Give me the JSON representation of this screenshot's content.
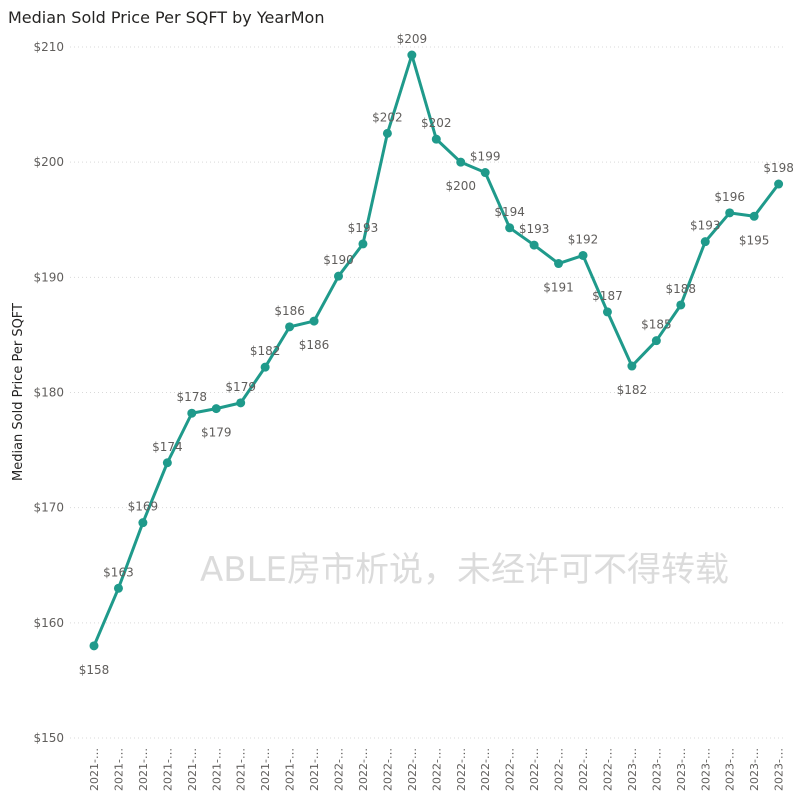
{
  "chart_data": {
    "type": "line",
    "title": "Median Sold Price Per SQFT by YearMon",
    "xlabel": "",
    "ylabel": "Median Sold Price Per SQFT",
    "ylim": [
      150,
      210
    ],
    "y_ticks": [
      "$150",
      "$160",
      "$170",
      "$180",
      "$190",
      "$200",
      "$210"
    ],
    "grid": true,
    "line_color": "#1F9A8B",
    "categories": [
      "2021-…",
      "2021-…",
      "2021-…",
      "2021-…",
      "2021-…",
      "2021-…",
      "2021-…",
      "2021-…",
      "2021-…",
      "2021-…",
      "2022-…",
      "2022-…",
      "2022-…",
      "2022-…",
      "2022-…",
      "2022-…",
      "2022-…",
      "2022-…",
      "2022-…",
      "2022-…",
      "2022-…",
      "2022-…",
      "2023-…",
      "2023-…",
      "2023-…",
      "2023-…",
      "2023-…",
      "2023-…",
      "2023-…"
    ],
    "values": [
      158.0,
      163.0,
      168.7,
      173.9,
      178.2,
      178.6,
      179.1,
      182.2,
      185.7,
      186.2,
      190.1,
      192.9,
      202.5,
      209.3,
      202.0,
      200.0,
      199.1,
      194.3,
      192.8,
      191.2,
      191.9,
      187.0,
      182.3,
      184.5,
      187.6,
      193.1,
      195.6,
      195.3,
      198.1
    ],
    "data_labels": [
      "$158",
      "$163",
      "$169",
      "$174",
      "$178",
      "$179",
      "$179",
      "$182",
      "$186",
      "$186",
      "$190",
      "$193",
      "$202",
      "$209",
      "$202",
      "$200",
      "$199",
      "$194",
      "$193",
      "$191",
      "$192",
      "$187",
      "$182",
      "$185",
      "$188",
      "$193",
      "$196",
      "$195",
      "$198"
    ]
  },
  "watermark": "ABLE房市析说，未经许可不得转载"
}
